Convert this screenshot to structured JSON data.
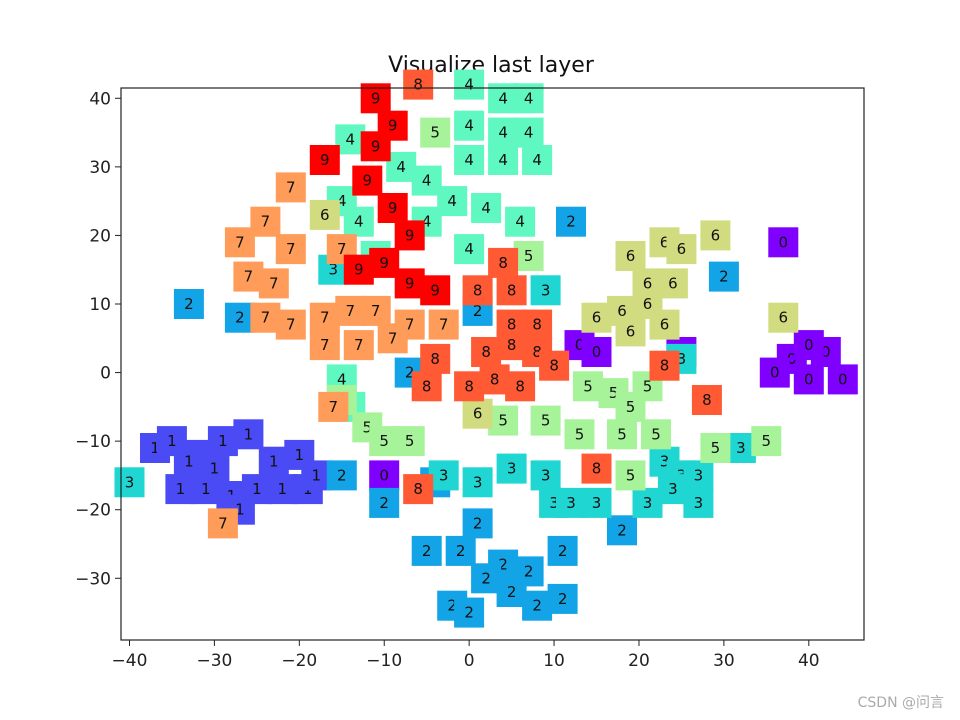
{
  "chart_data": {
    "type": "scatter",
    "title": "Visualize last layer",
    "xlabel": "",
    "ylabel": "",
    "xlim": [
      -41,
      46.5
    ],
    "ylim": [
      -39,
      41.5
    ],
    "xticks": [
      -40,
      -30,
      -20,
      -10,
      0,
      10,
      20,
      30,
      40
    ],
    "yticks": [
      -30,
      -20,
      -10,
      0,
      10,
      20,
      30,
      40
    ],
    "xtick_labels": [
      "−40",
      "−30",
      "−20",
      "−10",
      "0",
      "10",
      "20",
      "30",
      "40"
    ],
    "ytick_labels": [
      "−30",
      "−20",
      "−10",
      "0",
      "10",
      "20",
      "30",
      "40"
    ],
    "grid": false,
    "marker": "digit label on colored square",
    "class_colors": {
      "0": "#8000ff",
      "1": "#4b4bf5",
      "2": "#12a4e6",
      "3": "#1fd6d2",
      "4": "#5ef8c0",
      "5": "#a7f39a",
      "6": "#d1dc80",
      "7": "#ff9c59",
      "8": "#ff5a33",
      "9": "#ff0000"
    },
    "points": [
      {
        "label": "0",
        "x": 38,
        "y": 2
      },
      {
        "label": "0",
        "x": 40,
        "y": -1
      },
      {
        "label": "0",
        "x": 36,
        "y": 0
      },
      {
        "label": "0",
        "x": 42,
        "y": 3
      },
      {
        "label": "0",
        "x": 44,
        "y": -1
      },
      {
        "label": "0",
        "x": 40,
        "y": 4
      },
      {
        "label": "0",
        "x": 37,
        "y": 19
      },
      {
        "label": "0",
        "x": 13,
        "y": 4
      },
      {
        "label": "0",
        "x": 15,
        "y": 3
      },
      {
        "label": "0",
        "x": 25,
        "y": 3
      },
      {
        "label": "0",
        "x": -10,
        "y": -15
      },
      {
        "label": "1",
        "x": -37,
        "y": -11
      },
      {
        "label": "1",
        "x": -35,
        "y": -10
      },
      {
        "label": "1",
        "x": -32,
        "y": -12
      },
      {
        "label": "1",
        "x": -29,
        "y": -10
      },
      {
        "label": "1",
        "x": -26,
        "y": -9
      },
      {
        "label": "1",
        "x": -33,
        "y": -13
      },
      {
        "label": "1",
        "x": -30,
        "y": -14
      },
      {
        "label": "1",
        "x": -34,
        "y": -17
      },
      {
        "label": "1",
        "x": -31,
        "y": -17
      },
      {
        "label": "1",
        "x": -28,
        "y": -18
      },
      {
        "label": "1",
        "x": -25,
        "y": -17
      },
      {
        "label": "1",
        "x": -22,
        "y": -17
      },
      {
        "label": "1",
        "x": -19,
        "y": -17
      },
      {
        "label": "1",
        "x": -20,
        "y": -12
      },
      {
        "label": "1",
        "x": -18,
        "y": -15
      },
      {
        "label": "1",
        "x": -27,
        "y": -20
      },
      {
        "label": "1",
        "x": -23,
        "y": -13
      },
      {
        "label": "2",
        "x": -33,
        "y": 10
      },
      {
        "label": "2",
        "x": -27,
        "y": 8
      },
      {
        "label": "2",
        "x": -15,
        "y": -15
      },
      {
        "label": "2",
        "x": -10,
        "y": -19
      },
      {
        "label": "2",
        "x": -7,
        "y": 0
      },
      {
        "label": "2",
        "x": -4,
        "y": -16
      },
      {
        "label": "2",
        "x": -1,
        "y": -26
      },
      {
        "label": "2",
        "x": 1,
        "y": -22
      },
      {
        "label": "2",
        "x": 4,
        "y": -28
      },
      {
        "label": "2",
        "x": -5,
        "y": -26
      },
      {
        "label": "2",
        "x": 2,
        "y": -30
      },
      {
        "label": "2",
        "x": 5,
        "y": -32
      },
      {
        "label": "2",
        "x": 7,
        "y": -29
      },
      {
        "label": "2",
        "x": 11,
        "y": -26
      },
      {
        "label": "2",
        "x": 8,
        "y": -34
      },
      {
        "label": "2",
        "x": 11,
        "y": -33
      },
      {
        "label": "2",
        "x": -2,
        "y": -34
      },
      {
        "label": "2",
        "x": 0,
        "y": -35
      },
      {
        "label": "2",
        "x": 1,
        "y": 9
      },
      {
        "label": "2",
        "x": 12,
        "y": 22
      },
      {
        "label": "2",
        "x": 30,
        "y": 14
      },
      {
        "label": "2",
        "x": 18,
        "y": -23
      },
      {
        "label": "3",
        "x": -40,
        "y": -16
      },
      {
        "label": "3",
        "x": -16,
        "y": 15
      },
      {
        "label": "3",
        "x": 9,
        "y": 12
      },
      {
        "label": "3",
        "x": -3,
        "y": -15
      },
      {
        "label": "3",
        "x": 1,
        "y": -16
      },
      {
        "label": "3",
        "x": 5,
        "y": -14
      },
      {
        "label": "3",
        "x": 9,
        "y": -15
      },
      {
        "label": "3",
        "x": 10,
        "y": -19
      },
      {
        "label": "3",
        "x": 12,
        "y": -19
      },
      {
        "label": "3",
        "x": 15,
        "y": -19
      },
      {
        "label": "3",
        "x": 23,
        "y": -13
      },
      {
        "label": "3",
        "x": 25,
        "y": -15
      },
      {
        "label": "3",
        "x": 27,
        "y": -15
      },
      {
        "label": "3",
        "x": 24,
        "y": -17
      },
      {
        "label": "3",
        "x": 27,
        "y": -19
      },
      {
        "label": "3",
        "x": 21,
        "y": -19
      },
      {
        "label": "3",
        "x": 25,
        "y": 2
      },
      {
        "label": "3",
        "x": 32,
        "y": -11
      },
      {
        "label": "4",
        "x": 0,
        "y": 42
      },
      {
        "label": "4",
        "x": 4,
        "y": 40
      },
      {
        "label": "4",
        "x": 7,
        "y": 40
      },
      {
        "label": "4",
        "x": 0,
        "y": 36
      },
      {
        "label": "4",
        "x": 4,
        "y": 35
      },
      {
        "label": "4",
        "x": 7,
        "y": 35
      },
      {
        "label": "4",
        "x": 0,
        "y": 31
      },
      {
        "label": "4",
        "x": 4,
        "y": 31
      },
      {
        "label": "4",
        "x": 8,
        "y": 31
      },
      {
        "label": "4",
        "x": -14,
        "y": 34
      },
      {
        "label": "4",
        "x": -8,
        "y": 30
      },
      {
        "label": "4",
        "x": -5,
        "y": 28
      },
      {
        "label": "4",
        "x": -15,
        "y": 25
      },
      {
        "label": "4",
        "x": -13,
        "y": 22
      },
      {
        "label": "4",
        "x": -5,
        "y": 22
      },
      {
        "label": "4",
        "x": -2,
        "y": 25
      },
      {
        "label": "4",
        "x": 2,
        "y": 24
      },
      {
        "label": "4",
        "x": 6,
        "y": 22
      },
      {
        "label": "4",
        "x": 0,
        "y": 18
      },
      {
        "label": "4",
        "x": -11,
        "y": 17
      },
      {
        "label": "4",
        "x": -15,
        "y": -1
      },
      {
        "label": "4",
        "x": -14,
        "y": -5
      },
      {
        "label": "5",
        "x": -4,
        "y": 35
      },
      {
        "label": "5",
        "x": 7,
        "y": 17
      },
      {
        "label": "5",
        "x": -15,
        "y": -4
      },
      {
        "label": "5",
        "x": -12,
        "y": -8
      },
      {
        "label": "5",
        "x": -10,
        "y": -10
      },
      {
        "label": "5",
        "x": -7,
        "y": -10
      },
      {
        "label": "5",
        "x": 4,
        "y": -7
      },
      {
        "label": "5",
        "x": 9,
        "y": -7
      },
      {
        "label": "5",
        "x": 14,
        "y": -2
      },
      {
        "label": "5",
        "x": 17,
        "y": -3
      },
      {
        "label": "5",
        "x": 19,
        "y": -5
      },
      {
        "label": "5",
        "x": 21,
        "y": -2
      },
      {
        "label": "5",
        "x": 13,
        "y": -9
      },
      {
        "label": "5",
        "x": 18,
        "y": -9
      },
      {
        "label": "5",
        "x": 22,
        "y": -9
      },
      {
        "label": "5",
        "x": 19,
        "y": -15
      },
      {
        "label": "5",
        "x": 29,
        "y": -11
      },
      {
        "label": "5",
        "x": 35,
        "y": -10
      },
      {
        "label": "6",
        "x": -17,
        "y": 23
      },
      {
        "label": "6",
        "x": 19,
        "y": 17
      },
      {
        "label": "6",
        "x": 23,
        "y": 19
      },
      {
        "label": "6",
        "x": 25,
        "y": 18
      },
      {
        "label": "6",
        "x": 29,
        "y": 20
      },
      {
        "label": "6",
        "x": 21,
        "y": 13
      },
      {
        "label": "6",
        "x": 24,
        "y": 13
      },
      {
        "label": "6",
        "x": 15,
        "y": 8
      },
      {
        "label": "6",
        "x": 18,
        "y": 9
      },
      {
        "label": "6",
        "x": 21,
        "y": 10
      },
      {
        "label": "6",
        "x": 19,
        "y": 6
      },
      {
        "label": "6",
        "x": 23,
        "y": 7
      },
      {
        "label": "6",
        "x": 37,
        "y": 8
      },
      {
        "label": "6",
        "x": 1,
        "y": -6
      },
      {
        "label": "7",
        "x": -21,
        "y": 27
      },
      {
        "label": "7",
        "x": -24,
        "y": 22
      },
      {
        "label": "7",
        "x": -27,
        "y": 19
      },
      {
        "label": "7",
        "x": -21,
        "y": 18
      },
      {
        "label": "7",
        "x": -26,
        "y": 14
      },
      {
        "label": "7",
        "x": -23,
        "y": 13
      },
      {
        "label": "7",
        "x": -15,
        "y": 18
      },
      {
        "label": "7",
        "x": -24,
        "y": 8
      },
      {
        "label": "7",
        "x": -21,
        "y": 7
      },
      {
        "label": "7",
        "x": -17,
        "y": 8
      },
      {
        "label": "7",
        "x": -14,
        "y": 9
      },
      {
        "label": "7",
        "x": -11,
        "y": 9
      },
      {
        "label": "7",
        "x": -7,
        "y": 7
      },
      {
        "label": "7",
        "x": -3,
        "y": 7
      },
      {
        "label": "7",
        "x": -17,
        "y": 4
      },
      {
        "label": "7",
        "x": -13,
        "y": 4
      },
      {
        "label": "7",
        "x": -9,
        "y": 5
      },
      {
        "label": "7",
        "x": -16,
        "y": -5
      },
      {
        "label": "7",
        "x": -29,
        "y": -22
      },
      {
        "label": "8",
        "x": -6,
        "y": 42
      },
      {
        "label": "8",
        "x": 4,
        "y": 16
      },
      {
        "label": "8",
        "x": 1,
        "y": 12
      },
      {
        "label": "8",
        "x": 5,
        "y": 12
      },
      {
        "label": "8",
        "x": 5,
        "y": 7
      },
      {
        "label": "8",
        "x": 8,
        "y": 7
      },
      {
        "label": "8",
        "x": 5,
        "y": 4
      },
      {
        "label": "8",
        "x": 8,
        "y": 3
      },
      {
        "label": "8",
        "x": 2,
        "y": 3
      },
      {
        "label": "8",
        "x": -4,
        "y": 2
      },
      {
        "label": "8",
        "x": -5,
        "y": -2
      },
      {
        "label": "8",
        "x": 0,
        "y": -2
      },
      {
        "label": "8",
        "x": 3,
        "y": -1
      },
      {
        "label": "8",
        "x": 6,
        "y": -2
      },
      {
        "label": "8",
        "x": 10,
        "y": 1
      },
      {
        "label": "8",
        "x": 23,
        "y": 1
      },
      {
        "label": "8",
        "x": 28,
        "y": -4
      },
      {
        "label": "8",
        "x": 15,
        "y": -14
      },
      {
        "label": "8",
        "x": -6,
        "y": -17
      },
      {
        "label": "9",
        "x": -11,
        "y": 40
      },
      {
        "label": "9",
        "x": -9,
        "y": 36
      },
      {
        "label": "9",
        "x": -11,
        "y": 33
      },
      {
        "label": "9",
        "x": -17,
        "y": 31
      },
      {
        "label": "9",
        "x": -12,
        "y": 28
      },
      {
        "label": "9",
        "x": -9,
        "y": 24
      },
      {
        "label": "9",
        "x": -7,
        "y": 20
      },
      {
        "label": "9",
        "x": -10,
        "y": 16
      },
      {
        "label": "9",
        "x": -7,
        "y": 13
      },
      {
        "label": "9",
        "x": -13,
        "y": 15
      },
      {
        "label": "9",
        "x": -4,
        "y": 12
      }
    ]
  },
  "watermark": "CSDN @问言"
}
